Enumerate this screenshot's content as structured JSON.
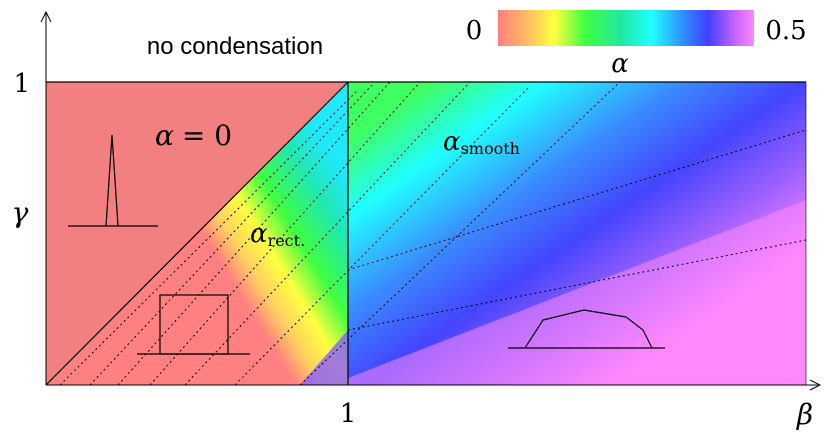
{
  "chart_data": {
    "type": "heatmap",
    "x_label": "β",
    "y_label": "γ",
    "x_ticks": [
      "1"
    ],
    "y_ticks": [
      "1"
    ],
    "colorbar": {
      "min_label": "0",
      "max_label": "0.5",
      "label": "α",
      "range": [
        0,
        0.5
      ]
    },
    "regions": [
      {
        "label": "no condensation"
      },
      {
        "label_base": "α",
        "label_equals": "= 0"
      },
      {
        "label_base": "α",
        "label_sub": "rect."
      },
      {
        "label_base": "α",
        "label_sub": "smooth"
      }
    ]
  }
}
